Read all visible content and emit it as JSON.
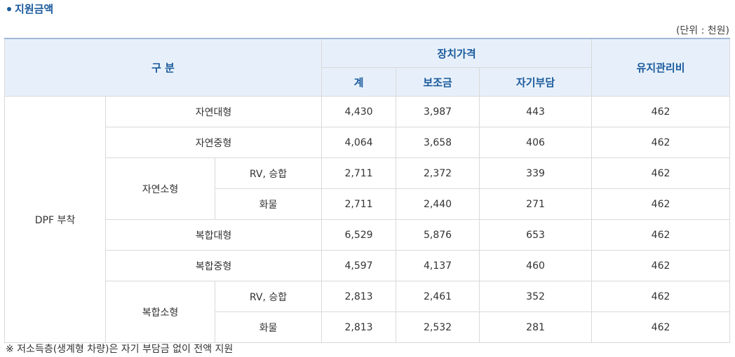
{
  "title": "지원금액",
  "unit": "(단위 : 천원)",
  "table": {
    "header": {
      "category": "구 분",
      "device_price": "장치가격",
      "total": "계",
      "subsidy": "보조금",
      "self_pay": "자기부담",
      "maintenance": "유지관리비"
    },
    "group": "DPF 부착",
    "rows": [
      {
        "type": "자연대형",
        "total": "4,430",
        "subsidy": "3,987",
        "self_pay": "443",
        "maintenance": "462"
      },
      {
        "type": "자연중형",
        "total": "4,064",
        "subsidy": "3,658",
        "self_pay": "406",
        "maintenance": "462"
      },
      {
        "type": "자연소형",
        "sub": "RV, 승합",
        "total": "2,711",
        "subsidy": "2,372",
        "self_pay": "339",
        "maintenance": "462"
      },
      {
        "sub": "화물",
        "total": "2,711",
        "subsidy": "2,440",
        "self_pay": "271",
        "maintenance": "462"
      },
      {
        "type": "복합대형",
        "total": "6,529",
        "subsidy": "5,876",
        "self_pay": "653",
        "maintenance": "462"
      },
      {
        "type": "복합중형",
        "total": "4,597",
        "subsidy": "4,137",
        "self_pay": "460",
        "maintenance": "462"
      },
      {
        "type": "복합소형",
        "sub": "RV, 승합",
        "total": "2,813",
        "subsidy": "2,461",
        "self_pay": "352",
        "maintenance": "462"
      },
      {
        "sub": "화물",
        "total": "2,813",
        "subsidy": "2,532",
        "self_pay": "281",
        "maintenance": "462"
      }
    ]
  },
  "note": "※ 저소득층(생계형 차량)은 자기 부담금 없이 전액 지원"
}
